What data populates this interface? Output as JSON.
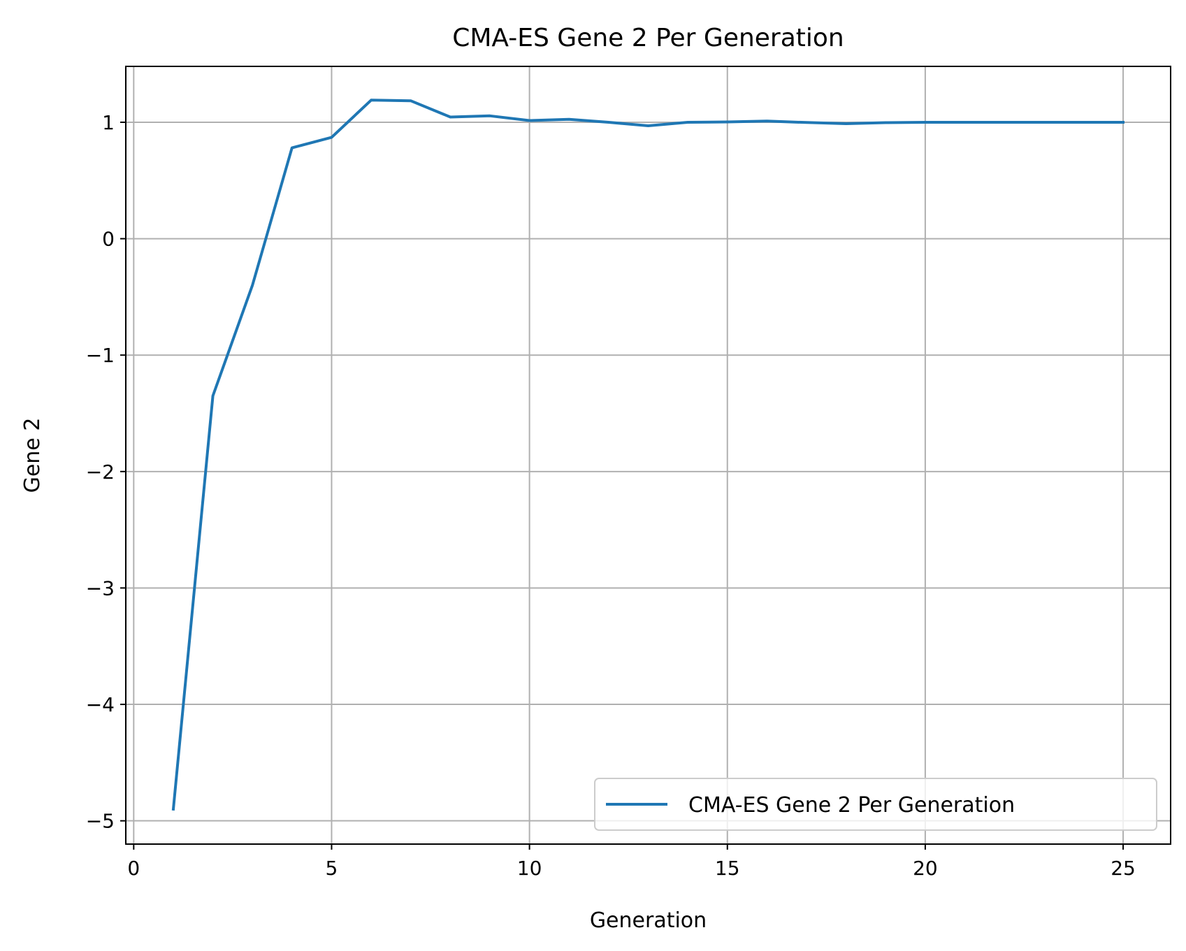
{
  "chart_data": {
    "type": "line",
    "title": "CMA-ES Gene 2 Per Generation",
    "xlabel": "Generation",
    "ylabel": "Gene 2",
    "xlim": [
      -0.2,
      26.2
    ],
    "ylim": [
      -5.2,
      1.48
    ],
    "xticks": [
      0,
      5,
      10,
      15,
      20,
      25
    ],
    "xtick_labels": [
      "0",
      "5",
      "10",
      "15",
      "20",
      "25"
    ],
    "yticks": [
      -5,
      -4,
      -3,
      -2,
      -1,
      0,
      1
    ],
    "ytick_labels": [
      "−5",
      "−4",
      "−3",
      "−2",
      "−1",
      "0",
      "1"
    ],
    "grid": true,
    "legend_position": "lower-right",
    "series": [
      {
        "name": "CMA-ES Gene 2 Per Generation",
        "color": "#1f77b4",
        "x": [
          1,
          2,
          3,
          4,
          5,
          6,
          7,
          8,
          9,
          10,
          11,
          12,
          13,
          14,
          15,
          16,
          17,
          18,
          19,
          20,
          21,
          22,
          23,
          24,
          25
        ],
        "y": [
          -4.9,
          -1.35,
          -0.4,
          0.78,
          0.87,
          1.19,
          1.185,
          1.045,
          1.055,
          1.015,
          1.025,
          1.0,
          0.97,
          1.0,
          1.003,
          1.01,
          0.998,
          0.988,
          0.997,
          1.0,
          1.0,
          1.0,
          1.0,
          1.0,
          1.0
        ]
      }
    ]
  }
}
